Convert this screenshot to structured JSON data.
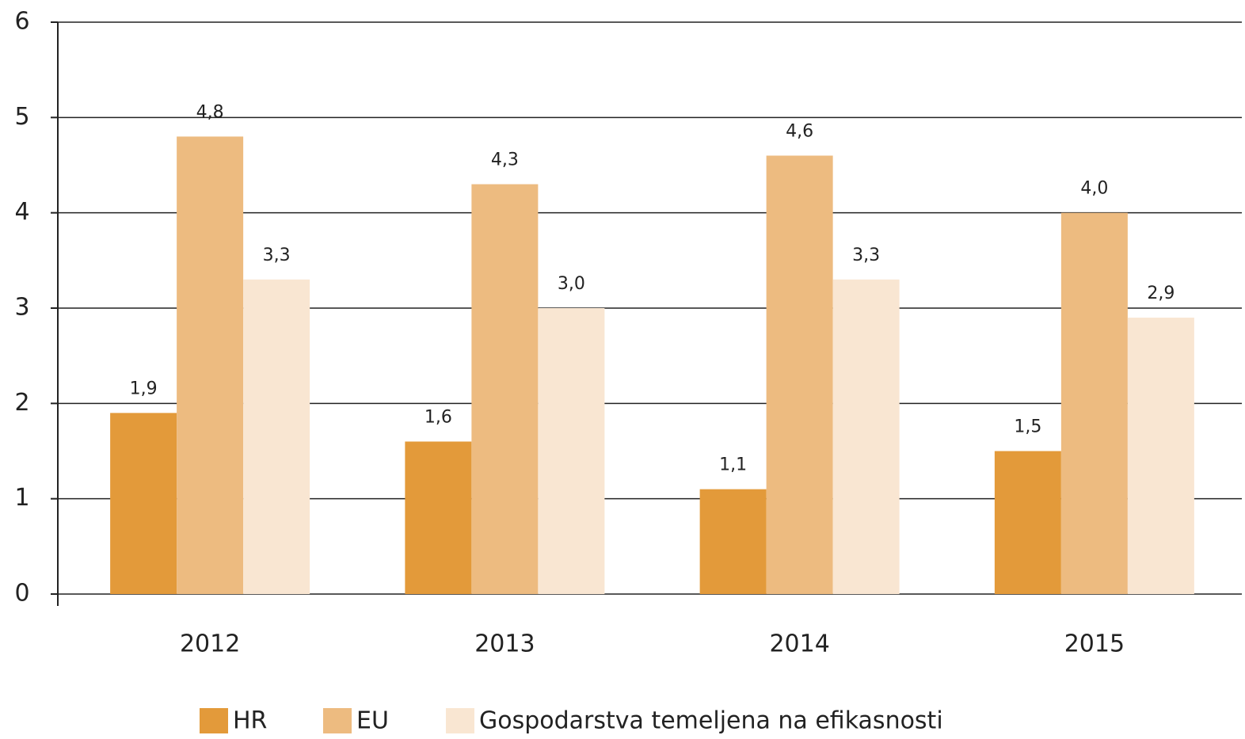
{
  "chart_data": {
    "type": "bar",
    "categories": [
      "2012",
      "2013",
      "2014",
      "2015"
    ],
    "series": [
      {
        "name": "HR",
        "color": "#e39a3a",
        "values": [
          1.9,
          1.6,
          1.1,
          1.5
        ],
        "value_labels": [
          "1,9",
          "1,6",
          "1,1",
          "1,5"
        ]
      },
      {
        "name": "EU",
        "color": "#edbb80",
        "values": [
          4.8,
          4.3,
          4.6,
          4.0
        ],
        "value_labels": [
          "4,8",
          "4,3",
          "4,6",
          "4,0"
        ]
      },
      {
        "name": "Gospodarstva temeljena na efikasnosti",
        "color": "#f9e6d2",
        "values": [
          3.3,
          3.0,
          3.3,
          2.9
        ],
        "value_labels": [
          "3,3",
          "3,0",
          "3,3",
          "2,9"
        ]
      }
    ],
    "ylim": [
      0,
      6
    ],
    "yticks": [
      0,
      1,
      2,
      3,
      4,
      5,
      6
    ],
    "grid": true,
    "legend": "bottom"
  }
}
